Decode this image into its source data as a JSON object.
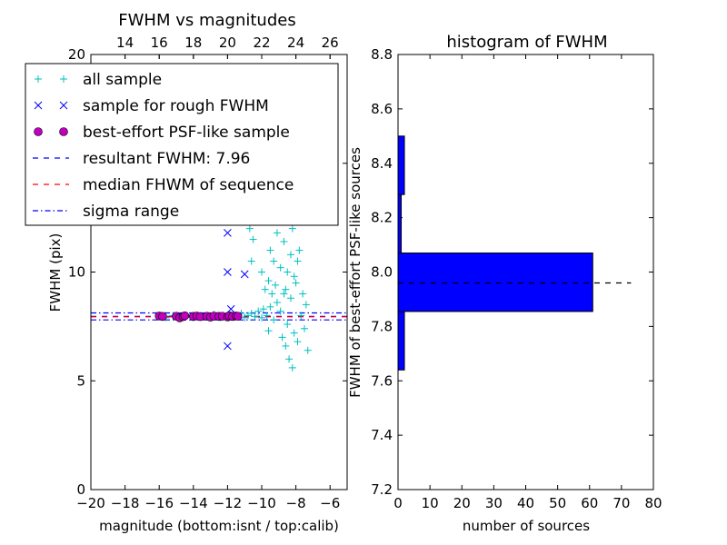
{
  "chart_data": [
    {
      "type": "scatter",
      "title": "FWHM vs magnitudes",
      "xlabel": "magnitude (bottom:isnt / top:calib)",
      "ylabel": "FWHM (pix)",
      "xlim": [
        -20,
        -5
      ],
      "ylim": [
        0,
        20
      ],
      "x_ticks": [
        -20,
        -18,
        -16,
        -14,
        -12,
        -10,
        -8,
        -6
      ],
      "x_tick_labels": [
        "−20",
        "−18",
        "−16",
        "−14",
        "−12",
        "−10",
        "−8",
        "−6"
      ],
      "y_ticks": [
        0,
        5,
        10,
        15,
        20
      ],
      "y_tick_labels": [
        "0",
        "5",
        "10",
        "15",
        "20"
      ],
      "top_axis": {
        "xlim": [
          12,
          27
        ],
        "ticks": [
          14,
          16,
          18,
          20,
          22,
          24,
          26
        ],
        "labels": [
          "14",
          "16",
          "18",
          "20",
          "22",
          "24",
          "26"
        ]
      },
      "legend": {
        "placement": "upper-left",
        "entries": [
          {
            "label": "all sample",
            "marker": "+",
            "color": "#00bfbf"
          },
          {
            "label": "sample for rough FWHM",
            "marker": "x",
            "color": "#0000ff"
          },
          {
            "label": "best-effort PSF-like sample",
            "marker": "o",
            "color": "#bf00bf"
          },
          {
            "label": "resultant FWHM: 7.96",
            "line": "dashed",
            "color": "#0000ff"
          },
          {
            "label": "median FHWM of sequence",
            "line": "dashed",
            "color": "#ff0000"
          },
          {
            "label": "sigma range",
            "line": "dashdot",
            "color": "#0000ff"
          }
        ]
      },
      "series": [
        {
          "marker": "+",
          "color": "#00bfbf",
          "points": [
            [
              -16.0,
              8.0
            ],
            [
              -15.6,
              7.9
            ],
            [
              -15.2,
              8.0
            ],
            [
              -14.8,
              7.95
            ],
            [
              -14.4,
              8.0
            ],
            [
              -14.0,
              7.9
            ],
            [
              -13.6,
              8.0
            ],
            [
              -13.2,
              7.95
            ],
            [
              -12.8,
              8.05
            ],
            [
              -12.4,
              7.9
            ],
            [
              -12.0,
              8.0
            ],
            [
              -11.6,
              7.95
            ],
            [
              -11.2,
              8.1
            ],
            [
              -11.0,
              7.9
            ],
            [
              -10.8,
              8.0
            ],
            [
              -10.6,
              8.1
            ],
            [
              -10.4,
              7.95
            ],
            [
              -10.2,
              8.2
            ],
            [
              -10.0,
              7.9
            ],
            [
              -9.9,
              8.3
            ],
            [
              -9.7,
              8.0
            ],
            [
              -9.5,
              8.4
            ],
            [
              -9.3,
              7.8
            ],
            [
              -9.1,
              8.6
            ],
            [
              -8.9,
              8.2
            ],
            [
              -8.7,
              9.0
            ],
            [
              -8.5,
              7.6
            ],
            [
              -8.3,
              8.8
            ],
            [
              -8.1,
              7.2
            ],
            [
              -8.0,
              9.5
            ],
            [
              -7.9,
              6.8
            ],
            [
              -7.7,
              8.0
            ],
            [
              -7.5,
              7.4
            ],
            [
              -7.3,
              6.4
            ],
            [
              -8.4,
              6.0
            ],
            [
              -8.2,
              5.6
            ],
            [
              -8.6,
              6.6
            ],
            [
              -8.8,
              7.0
            ],
            [
              -9.6,
              7.3
            ],
            [
              -10.7,
              12.0
            ],
            [
              -10.5,
              11.5
            ],
            [
              -10.3,
              13.0
            ],
            [
              -10.1,
              12.5
            ],
            [
              -9.9,
              14.0
            ],
            [
              -9.6,
              13.5
            ],
            [
              -9.4,
              15.0
            ],
            [
              -9.2,
              12.8
            ],
            [
              -9.0,
              16.0
            ],
            [
              -8.8,
              14.5
            ],
            [
              -8.6,
              13.0
            ],
            [
              -8.4,
              15.5
            ],
            [
              -8.2,
              12.0
            ],
            [
              -8.0,
              14.0
            ],
            [
              -7.8,
              11.0
            ],
            [
              -9.5,
              11.0
            ],
            [
              -9.3,
              10.5
            ],
            [
              -9.1,
              11.8
            ],
            [
              -8.9,
              10.2
            ],
            [
              -8.7,
              11.4
            ],
            [
              -8.5,
              10.0
            ],
            [
              -8.3,
              10.8
            ],
            [
              -8.1,
              9.8
            ],
            [
              -7.9,
              10.5
            ],
            [
              -10.6,
              10.5
            ],
            [
              -10.9,
              14.0
            ],
            [
              -11.0,
              12.5
            ],
            [
              -10.0,
              10.0
            ],
            [
              -9.8,
              9.2
            ],
            [
              -9.6,
              9.6
            ],
            [
              -9.4,
              9.0
            ],
            [
              -9.2,
              9.4
            ],
            [
              -8.6,
              9.2
            ],
            [
              -7.6,
              9.0
            ],
            [
              -7.4,
              8.5
            ],
            [
              -9.9,
              19.0
            ],
            [
              -9.2,
              16.5
            ],
            [
              -8.7,
              16.8
            ],
            [
              -8.2,
              15.2
            ]
          ]
        },
        {
          "marker": "x",
          "color": "#0000ff",
          "points": [
            [
              -12.0,
              11.8
            ],
            [
              -12.0,
              10.0
            ],
            [
              -12.0,
              6.6
            ],
            [
              -11.8,
              8.3
            ],
            [
              -11.0,
              9.9
            ],
            [
              -12.0,
              14.5
            ]
          ]
        },
        {
          "marker": "o",
          "color": "#bf00bf",
          "points": [
            [
              -16.0,
              7.98
            ],
            [
              -15.8,
              7.96
            ],
            [
              -15.0,
              7.97
            ],
            [
              -14.8,
              7.9
            ],
            [
              -14.6,
              7.95
            ],
            [
              -14.5,
              7.99
            ],
            [
              -14.0,
              7.96
            ],
            [
              -13.8,
              7.98
            ],
            [
              -13.6,
              7.95
            ],
            [
              -13.2,
              7.97
            ],
            [
              -13.0,
              7.93
            ],
            [
              -12.8,
              7.98
            ],
            [
              -12.5,
              7.96
            ],
            [
              -12.3,
              7.97
            ],
            [
              -12.0,
              7.94
            ],
            [
              -11.9,
              7.99
            ],
            [
              -11.7,
              7.96
            ],
            [
              -11.5,
              7.98
            ],
            [
              -11.4,
              7.97
            ]
          ]
        }
      ],
      "hlines": [
        {
          "y": 7.96,
          "color": "#0000ff",
          "style": "dashed"
        },
        {
          "y": 7.94,
          "color": "#ff0000",
          "style": "dashed"
        },
        {
          "y": 8.12,
          "color": "#0000ff",
          "style": "dashdot"
        },
        {
          "y": 7.8,
          "color": "#0000ff",
          "style": "dashdot"
        }
      ]
    },
    {
      "type": "bar",
      "orientation": "horizontal",
      "title": "histogram of FWHM",
      "xlabel": "number of sources",
      "ylabel": "FWHM of best-effort PSF-like sources",
      "xlim": [
        0,
        80
      ],
      "ylim": [
        7.2,
        8.8
      ],
      "x_ticks": [
        0,
        10,
        20,
        30,
        40,
        50,
        60,
        70,
        80
      ],
      "x_tick_labels": [
        "0",
        "10",
        "20",
        "30",
        "40",
        "50",
        "60",
        "70",
        "80"
      ],
      "y_ticks": [
        7.2,
        7.4,
        7.6,
        7.8,
        8.0,
        8.2,
        8.4,
        8.6,
        8.8
      ],
      "y_tick_labels": [
        "7.2",
        "7.4",
        "7.6",
        "7.8",
        "8.0",
        "8.2",
        "8.4",
        "8.6",
        "8.8"
      ],
      "bars": [
        {
          "low": 7.64,
          "high": 7.855,
          "count": 2
        },
        {
          "low": 7.855,
          "high": 8.07,
          "count": 61
        },
        {
          "low": 8.07,
          "high": 8.285,
          "count": 1
        },
        {
          "low": 8.285,
          "high": 8.5,
          "count": 2
        }
      ],
      "bar_color": "#0000ff",
      "ref_line": {
        "y": 7.96,
        "x_range": [
          0,
          73
        ],
        "style": "dashed",
        "color": "#000000"
      }
    }
  ]
}
